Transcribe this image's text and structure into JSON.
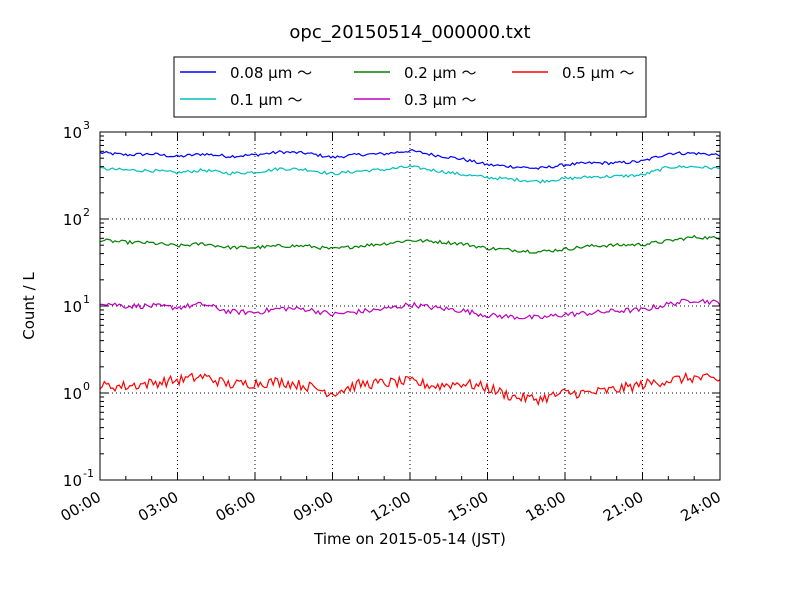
{
  "chart_data": {
    "type": "line",
    "title": "opc_20150514_000000.txt",
    "xlabel": "Time on 2015-05-14 (JST)",
    "ylabel": "Count / L",
    "y_scale": "log",
    "ylim": [
      0.1,
      1000
    ],
    "y_ticks": [
      {
        "base": "10",
        "exp": "-1",
        "value": 0.1
      },
      {
        "base": "10",
        "exp": "0",
        "value": 1
      },
      {
        "base": "10",
        "exp": "1",
        "value": 10
      },
      {
        "base": "10",
        "exp": "2",
        "value": 100
      },
      {
        "base": "10",
        "exp": "3",
        "value": 1000
      }
    ],
    "x_ticks": [
      "00:00",
      "03:00",
      "06:00",
      "09:00",
      "12:00",
      "15:00",
      "18:00",
      "21:00",
      "24:00"
    ],
    "x_unit": "hours",
    "xlim": [
      0,
      24
    ],
    "grid": true,
    "legend_placement": "top-center",
    "series": [
      {
        "name": "0.08 μm ～",
        "color": "#0000ff",
        "x": [
          0,
          1,
          2,
          3,
          4,
          5,
          6,
          7,
          8,
          9,
          10,
          11,
          12,
          13,
          14,
          15,
          16,
          17,
          18,
          19,
          20,
          21,
          22,
          23,
          24
        ],
        "y": [
          580,
          545,
          560,
          520,
          560,
          525,
          545,
          590,
          570,
          510,
          550,
          560,
          610,
          540,
          490,
          420,
          400,
          380,
          420,
          440,
          440,
          460,
          570,
          570,
          545
        ]
      },
      {
        "name": "0.1 μm ～",
        "color": "#00bfbf",
        "x": [
          0,
          1,
          2,
          3,
          4,
          5,
          6,
          7,
          8,
          9,
          10,
          11,
          12,
          13,
          14,
          15,
          16,
          17,
          18,
          19,
          20,
          21,
          22,
          23,
          24
        ],
        "y": [
          380,
          365,
          360,
          340,
          365,
          335,
          345,
          380,
          370,
          330,
          355,
          370,
          400,
          360,
          325,
          300,
          285,
          270,
          290,
          305,
          310,
          320,
          395,
          400,
          380
        ]
      },
      {
        "name": "0.2 μm ～",
        "color": "#008000",
        "x": [
          0,
          1,
          2,
          3,
          4,
          5,
          6,
          7,
          8,
          9,
          10,
          11,
          12,
          13,
          14,
          15,
          16,
          17,
          18,
          19,
          20,
          21,
          22,
          23,
          24
        ],
        "y": [
          57,
          54,
          53,
          49,
          52,
          47,
          47,
          49,
          49,
          45,
          49,
          52,
          57,
          55,
          52,
          46,
          44,
          42,
          45,
          49,
          50,
          51,
          56,
          62,
          60
        ]
      },
      {
        "name": "0.3 μm ～",
        "color": "#bf00bf",
        "x": [
          0,
          1,
          2,
          3,
          4,
          5,
          6,
          7,
          8,
          9,
          10,
          11,
          12,
          13,
          14,
          15,
          16,
          17,
          18,
          19,
          20,
          21,
          22,
          23,
          24
        ],
        "y": [
          11,
          10,
          10,
          9.6,
          10.5,
          8.6,
          8.4,
          9.4,
          9.2,
          8.0,
          8.6,
          9.2,
          10.4,
          9.5,
          8.9,
          7.8,
          7.5,
          7.3,
          8.0,
          8.3,
          8.8,
          9.0,
          10.5,
          11.8,
          10.8
        ]
      },
      {
        "name": "0.5 μm ～",
        "color": "#ff0000",
        "x": [
          0,
          1,
          2,
          3,
          4,
          5,
          6,
          7,
          8,
          9,
          10,
          11,
          12,
          13,
          14,
          15,
          16,
          17,
          18,
          19,
          20,
          21,
          22,
          23,
          24
        ],
        "y": [
          1.2,
          1.2,
          1.3,
          1.4,
          1.55,
          1.25,
          1.3,
          1.35,
          1.2,
          1.0,
          1.25,
          1.3,
          1.35,
          1.2,
          1.3,
          1.15,
          0.9,
          0.85,
          1.0,
          1.0,
          1.1,
          1.25,
          1.4,
          1.5,
          1.4
        ]
      }
    ]
  }
}
